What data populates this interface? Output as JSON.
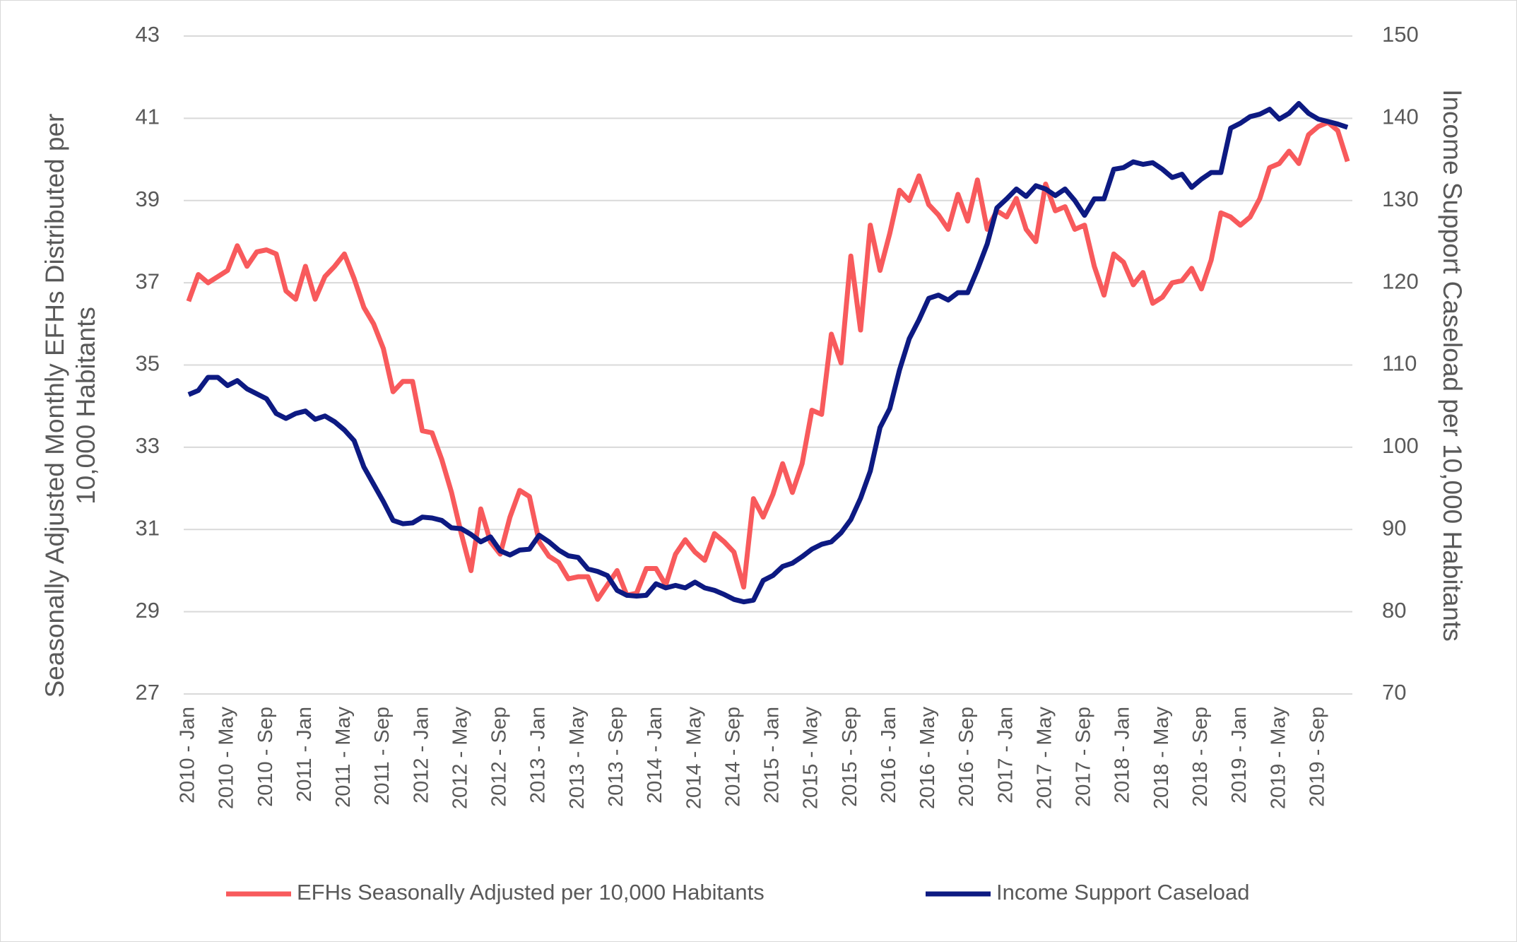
{
  "chart_data": {
    "type": "line",
    "y_label": "Seasonally  Adjusted Monthly EFHs Distributed per 10,000 Habitants",
    "y2_label": "Income Support Caseload per 10,000 Habitants",
    "categories": [
      "2010 - Jan",
      null,
      null,
      null,
      "2010 - May",
      null,
      null,
      null,
      "2010 - Sep",
      null,
      null,
      null,
      "2011 - Jan",
      null,
      null,
      null,
      "2011 - May",
      null,
      null,
      null,
      "2011 - Sep",
      null,
      null,
      null,
      "2012 - Jan",
      null,
      null,
      null,
      "2012 - May",
      null,
      null,
      null,
      "2012 - Sep",
      null,
      null,
      null,
      "2013 - Jan",
      null,
      null,
      null,
      "2013 - May",
      null,
      null,
      null,
      "2013 - Sep",
      null,
      null,
      null,
      "2014 - Jan",
      null,
      null,
      null,
      "2014 - May",
      null,
      null,
      null,
      "2014 - Sep",
      null,
      null,
      null,
      "2015 - Jan",
      null,
      null,
      null,
      "2015 - May",
      null,
      null,
      null,
      "2015 - Sep",
      null,
      null,
      null,
      "2016 - Jan",
      null,
      null,
      null,
      "2016 - May",
      null,
      null,
      null,
      "2016 - Sep",
      null,
      null,
      null,
      "2017 - Jan",
      null,
      null,
      null,
      "2017 - May",
      null,
      null,
      null,
      "2017 - Sep",
      null,
      null,
      null,
      "2018 - Jan",
      null,
      null,
      null,
      "2018 - May",
      null,
      null,
      null,
      "2018 - Sep",
      null,
      null,
      null,
      "2019 - Jan",
      null,
      null,
      null,
      "2019 - May",
      null,
      null,
      null,
      "2019 - Sep",
      null,
      null,
      null
    ],
    "series": [
      {
        "name": "EFHs Seasonally Adjusted per 10,000 Habitants",
        "color": "#f85a5c",
        "values": [
          36.55,
          37.2,
          37.0,
          37.15,
          37.3,
          37.9,
          37.4,
          37.75,
          37.8,
          37.7,
          36.8,
          36.6,
          37.4,
          36.6,
          37.15,
          37.4,
          37.7,
          37.1,
          36.4,
          36.0,
          35.4,
          34.35,
          34.6,
          34.6,
          33.4,
          33.35,
          32.7,
          31.9,
          30.9,
          30.0,
          31.5,
          30.7,
          30.4,
          31.3,
          31.95,
          31.8,
          30.7,
          30.35,
          30.2,
          29.8,
          29.85,
          29.85,
          29.3,
          29.65,
          30.0,
          29.4,
          29.45,
          30.05,
          30.05,
          29.65,
          30.4,
          30.75,
          30.45,
          30.25,
          30.9,
          30.7,
          30.45,
          29.6,
          31.75,
          31.3,
          31.85,
          32.6,
          31.9,
          32.6,
          33.9,
          33.8,
          35.75,
          35.05,
          37.65,
          35.85,
          38.4,
          37.3,
          38.2,
          39.25,
          39.0,
          39.6,
          38.9,
          38.65,
          38.3,
          39.15,
          38.5,
          39.5,
          38.3,
          38.75,
          38.6,
          39.05,
          38.3,
          38.0,
          39.4,
          38.75,
          38.85,
          38.3,
          38.4,
          37.4,
          36.7,
          37.7,
          37.5,
          36.95,
          37.25,
          36.5,
          36.65,
          37.0,
          37.05,
          37.35,
          36.85,
          37.55,
          38.7,
          38.6,
          38.4,
          38.6,
          39.05,
          39.8,
          39.9,
          40.2,
          39.9,
          40.6,
          40.8,
          40.9,
          40.7,
          39.95
        ]
      },
      {
        "name": "Income Support Caseload",
        "color": "#0d1a82",
        "axis": "y2",
        "values": [
          106.4,
          106.9,
          108.5,
          108.5,
          107.5,
          108.1,
          107.1,
          106.5,
          105.9,
          104.1,
          103.5,
          104.1,
          104.4,
          103.4,
          103.8,
          103.1,
          102.1,
          100.8,
          97.6,
          95.5,
          93.4,
          91.1,
          90.7,
          90.8,
          91.5,
          91.4,
          91.1,
          90.2,
          90.1,
          89.4,
          88.5,
          89.1,
          87.4,
          86.9,
          87.5,
          87.6,
          89.3,
          88.5,
          87.5,
          86.8,
          86.6,
          85.2,
          84.9,
          84.4,
          82.6,
          82.0,
          81.9,
          82.0,
          83.4,
          82.9,
          83.2,
          82.9,
          83.6,
          82.9,
          82.6,
          82.1,
          81.5,
          81.2,
          81.4,
          83.8,
          84.4,
          85.5,
          85.9,
          86.7,
          87.6,
          88.2,
          88.5,
          89.6,
          91.2,
          93.8,
          97.1,
          102.4,
          104.7,
          109.4,
          113.2,
          115.5,
          118.1,
          118.5,
          117.9,
          118.8,
          118.8,
          121.6,
          124.7,
          129.1,
          130.2,
          131.4,
          130.5,
          131.8,
          131.4,
          130.6,
          131.4,
          130.0,
          128.2,
          130.2,
          130.2,
          133.8,
          134.0,
          134.7,
          134.4,
          134.6,
          133.8,
          132.8,
          133.2,
          131.6,
          132.6,
          133.4,
          133.4,
          138.8,
          139.4,
          140.2,
          140.5,
          141.1,
          139.9,
          140.6,
          141.8,
          140.6,
          139.9,
          139.6,
          139.3,
          138.9
        ]
      }
    ],
    "ylim": [
      27,
      43
    ],
    "yticks": [
      27,
      29,
      31,
      33,
      35,
      37,
      39,
      41,
      43
    ],
    "y2lim": [
      70,
      150
    ],
    "y2ticks": [
      70,
      80,
      90,
      100,
      110,
      120,
      130,
      140,
      150
    ],
    "grid": true,
    "legend": "bottom"
  }
}
